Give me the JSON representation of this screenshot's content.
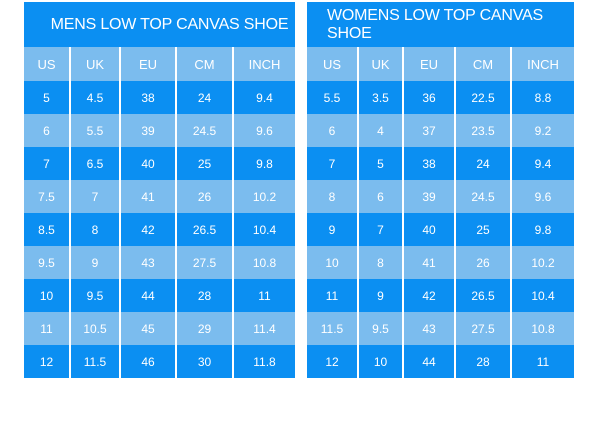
{
  "colors": {
    "dark": "#0b8ff2",
    "light": "#7bbcee"
  },
  "mens": {
    "title": "MENS LOW TOP CANVAS SHOE",
    "headers": [
      "US",
      "UK",
      "EU",
      "CM",
      "INCH"
    ],
    "rows": [
      [
        "5",
        "4.5",
        "38",
        "24",
        "9.4"
      ],
      [
        "6",
        "5.5",
        "39",
        "24.5",
        "9.6"
      ],
      [
        "7",
        "6.5",
        "40",
        "25",
        "9.8"
      ],
      [
        "7.5",
        "7",
        "41",
        "26",
        "10.2"
      ],
      [
        "8.5",
        "8",
        "42",
        "26.5",
        "10.4"
      ],
      [
        "9.5",
        "9",
        "43",
        "27.5",
        "10.8"
      ],
      [
        "10",
        "9.5",
        "44",
        "28",
        "11"
      ],
      [
        "11",
        "10.5",
        "45",
        "29",
        "11.4"
      ],
      [
        "12",
        "11.5",
        "46",
        "30",
        "11.8"
      ]
    ]
  },
  "womens": {
    "title": "WOMENS LOW TOP CANVAS SHOE",
    "headers": [
      "US",
      "UK",
      "EU",
      "CM",
      "INCH"
    ],
    "rows": [
      [
        "5.5",
        "3.5",
        "36",
        "22.5",
        "8.8"
      ],
      [
        "6",
        "4",
        "37",
        "23.5",
        "9.2"
      ],
      [
        "7",
        "5",
        "38",
        "24",
        "9.4"
      ],
      [
        "8",
        "6",
        "39",
        "24.5",
        "9.6"
      ],
      [
        "9",
        "7",
        "40",
        "25",
        "9.8"
      ],
      [
        "10",
        "8",
        "41",
        "26",
        "10.2"
      ],
      [
        "11",
        "9",
        "42",
        "26.5",
        "10.4"
      ],
      [
        "11.5",
        "9.5",
        "43",
        "27.5",
        "10.8"
      ],
      [
        "12",
        "10",
        "44",
        "28",
        "11"
      ]
    ]
  }
}
